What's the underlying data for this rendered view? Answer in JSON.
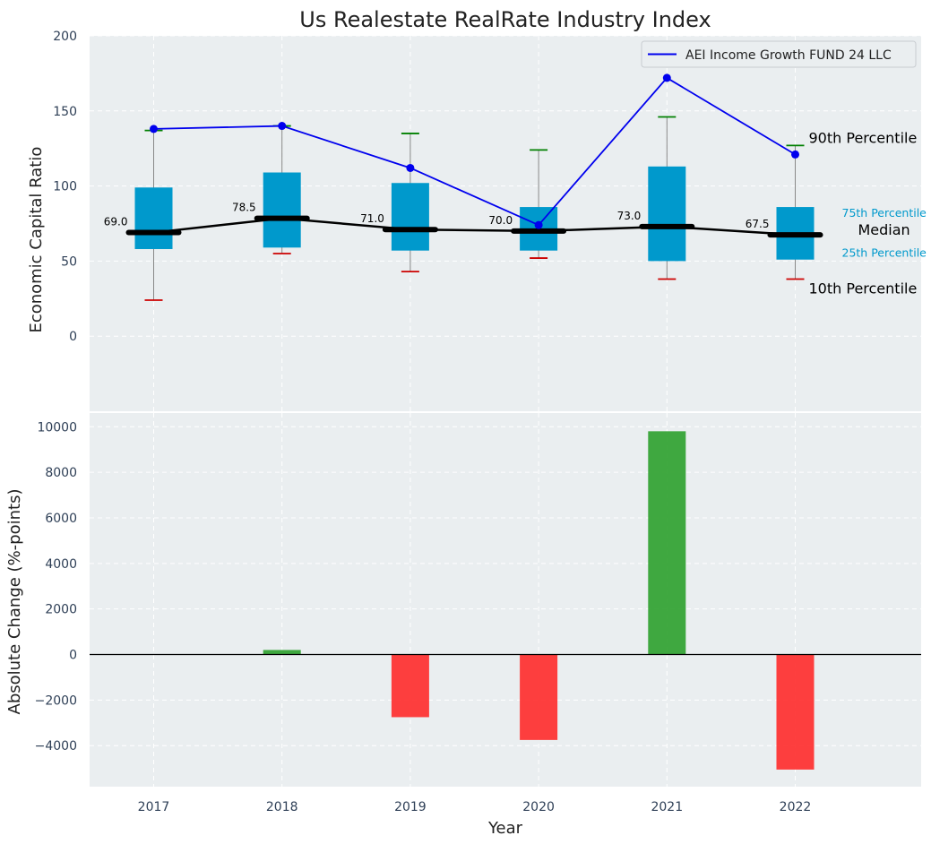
{
  "chart_data": [
    {
      "type": "box",
      "title": "Us Realestate RealRate Industry Index",
      "ylabel": "Economic Capital Ratio",
      "ylim": [
        -50,
        200
      ],
      "yticks": [
        0,
        50,
        100,
        150,
        200
      ],
      "grid": true,
      "legend": {
        "label": "AEI Income Growth FUND 24 LLC",
        "placement": "top-right"
      },
      "categories": [
        "2017",
        "2018",
        "2019",
        "2020",
        "2021",
        "2022"
      ],
      "boxes": [
        {
          "year": "2017",
          "p10": 24,
          "p25": 58,
          "median": 69.0,
          "p75": 99,
          "p90": 137
        },
        {
          "year": "2018",
          "p10": 55,
          "p25": 59,
          "median": 78.5,
          "p75": 109,
          "p90": 140
        },
        {
          "year": "2019",
          "p10": 43,
          "p25": 57,
          "median": 71.0,
          "p75": 102,
          "p90": 135
        },
        {
          "year": "2020",
          "p10": 52,
          "p25": 57,
          "median": 70.0,
          "p75": 86,
          "p90": 124
        },
        {
          "year": "2021",
          "p10": 38,
          "p25": 50,
          "median": 73.0,
          "p75": 113,
          "p90": 146
        },
        {
          "year": "2022",
          "p10": 38,
          "p25": 51,
          "median": 67.5,
          "p75": 86,
          "p90": 127
        }
      ],
      "median_labels": [
        "69.0",
        "78.5",
        "71.0",
        "70.0",
        "73.0",
        "67.5"
      ],
      "series": [
        {
          "name": "AEI Income Growth FUND 24 LLC",
          "values": [
            138,
            140,
            112,
            74,
            172,
            121
          ],
          "color": "#0000ee"
        }
      ],
      "annotations": {
        "p90": "90th Percentile",
        "p75": "75th Percentile",
        "median": "Median",
        "p25": "25th Percentile",
        "p10": "10th Percentile"
      },
      "colors": {
        "box": "#0099cc",
        "median": "#000000",
        "p90_cap": "#008000",
        "p10_cap": "#cc0000"
      }
    },
    {
      "type": "bar",
      "ylabel": "Absolute Change (%-points)",
      "xlabel": "Year",
      "ylim": [
        -5800,
        10600
      ],
      "yticks": [
        -4000,
        -2000,
        0,
        2000,
        4000,
        6000,
        8000,
        10000
      ],
      "grid": true,
      "categories": [
        "2017",
        "2018",
        "2019",
        "2020",
        "2021",
        "2022"
      ],
      "values": [
        0,
        200,
        -2750,
        -3750,
        9800,
        -5050
      ],
      "colors": {
        "positive": "#2ca02c",
        "negative": "#ff2a2a"
      }
    }
  ]
}
